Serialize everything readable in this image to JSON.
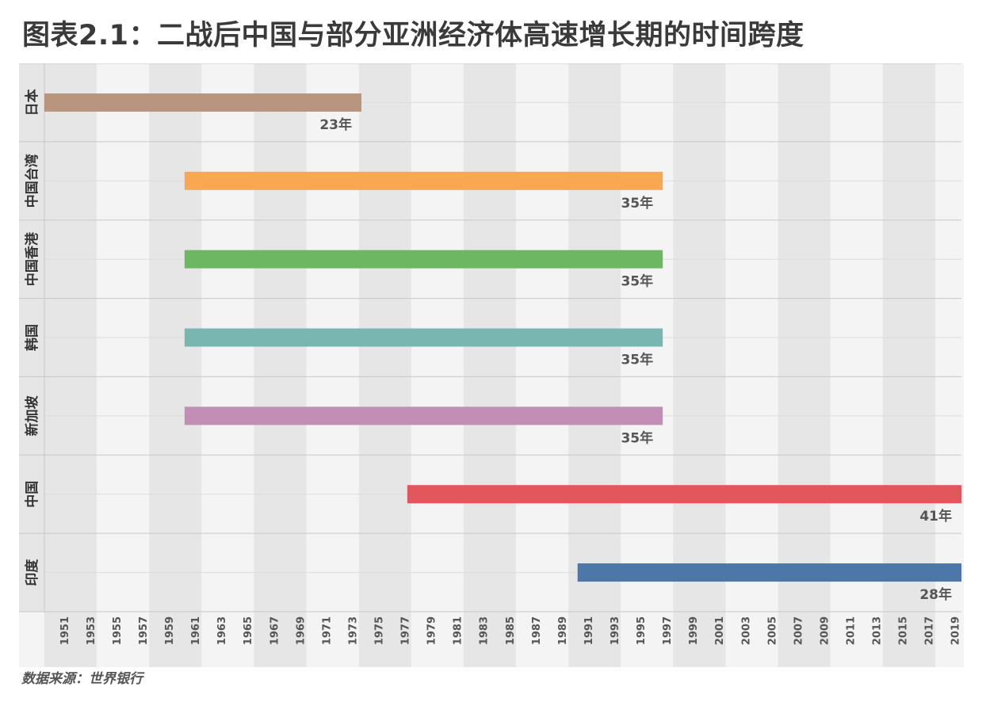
{
  "page": {
    "title": "图表2.1：二战后中国与部分亚洲经济体高速增长期的时间跨度",
    "source": "数据来源：世界银行"
  },
  "chart_data": {
    "type": "bar",
    "orientation": "horizontal-range",
    "title": "图表2.1：二战后中国与部分亚洲经济体高速增长期的时间跨度",
    "xlim": [
      1950,
      2020
    ],
    "x_ticks": [
      1951,
      1953,
      1955,
      1957,
      1959,
      1961,
      1963,
      1965,
      1967,
      1969,
      1971,
      1973,
      1975,
      1977,
      1979,
      1981,
      1983,
      1985,
      1987,
      1989,
      1991,
      1993,
      1995,
      1997,
      1999,
      2001,
      2003,
      2005,
      2007,
      2009,
      2011,
      2013,
      2015,
      2017,
      2019
    ],
    "categories": [
      "日本",
      "中国台湾",
      "中国香港",
      "韩国",
      "新加坡",
      "中国",
      "印度"
    ],
    "series": [
      {
        "category": "日本",
        "start": 1950,
        "end": 1974.2,
        "label": "23年",
        "color": "#b9947f"
      },
      {
        "category": "中国台湾",
        "start": 1960.7,
        "end": 1997.2,
        "label": "35年",
        "color": "#f8a752"
      },
      {
        "category": "中国香港",
        "start": 1960.7,
        "end": 1997.2,
        "label": "35年",
        "color": "#6db763"
      },
      {
        "category": "韩国",
        "start": 1960.7,
        "end": 1997.2,
        "label": "35年",
        "color": "#79b6b1"
      },
      {
        "category": "新加坡",
        "start": 1960.7,
        "end": 1997.2,
        "label": "35年",
        "color": "#c38eb6"
      },
      {
        "category": "中国",
        "start": 1977.7,
        "end": 2020,
        "label": "41年",
        "color": "#e1575c"
      },
      {
        "category": "印度",
        "start": 1990.7,
        "end": 2020,
        "label": "28年",
        "color": "#4b78a8"
      }
    ],
    "grid": true,
    "legend": "none",
    "stripe_colors": [
      "#e6e6e6",
      "#f4f4f4"
    ]
  }
}
